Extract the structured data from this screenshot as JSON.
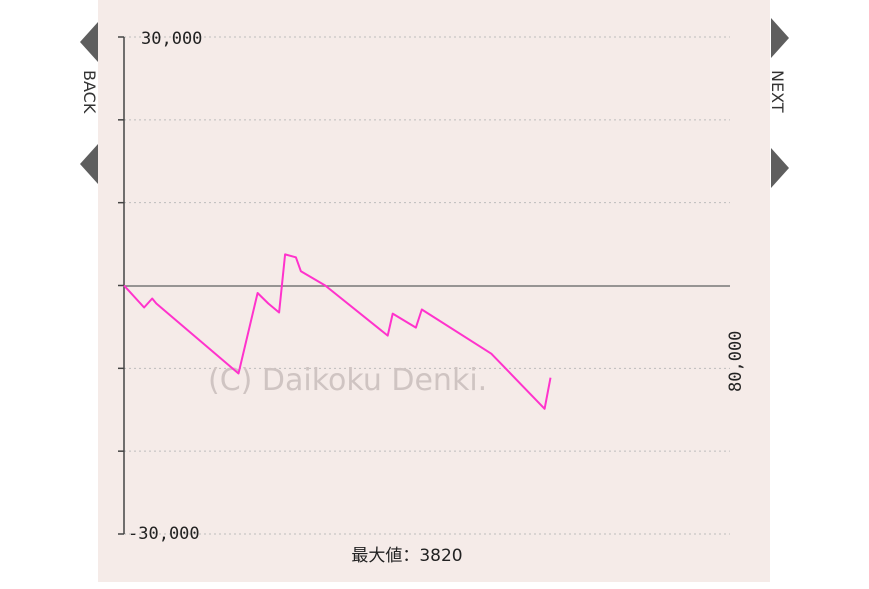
{
  "nav": {
    "back_label": "BACK",
    "next_label": "NEXT"
  },
  "colors": {
    "panel_bg": "#f5ebe8",
    "line": "#ff33cc",
    "zero_line": "#777777",
    "grid": "#bdbdbd"
  },
  "footer": {
    "max_label": "最大値：3820"
  },
  "watermark": "(C) Daikoku Denki.",
  "chart_data": {
    "type": "line",
    "title": "",
    "xlabel": "",
    "ylabel": "",
    "ylim": [
      -30000,
      30000
    ],
    "xlim": [
      0,
      80000
    ],
    "y_tick_labels": [
      "30,000",
      "-30,000"
    ],
    "x_tick_labels": [
      "80,000"
    ],
    "y_ticks": [
      30000,
      20000,
      10000,
      0,
      -10000,
      -20000,
      -30000
    ],
    "grid": true,
    "series": [
      {
        "x": [
          0,
          2660,
          3720,
          4260,
          15110,
          17640,
          19050,
          20480,
          21270,
          22690,
          23350,
          26560,
          34810,
          35470,
          38530,
          39320,
          48490,
          55520,
          56310
        ],
        "y": [
          0,
          -2660,
          -1570,
          -2170,
          -10620,
          -900,
          -2170,
          -3260,
          3750,
          3400,
          1710,
          0,
          -6050,
          -3390,
          -5080,
          -2900,
          -8230,
          -14880,
          -11130
        ]
      }
    ]
  }
}
